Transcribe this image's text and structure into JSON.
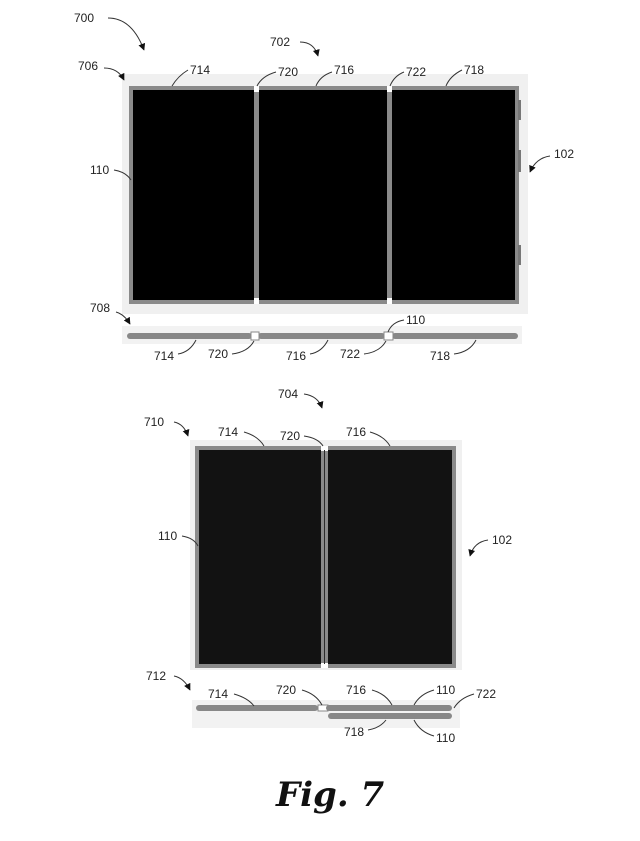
{
  "figure_caption": "Fig. 7",
  "refs": {
    "r700": "700",
    "r702": "702",
    "r704": "704",
    "r706": "706",
    "r708": "708",
    "r710": "710",
    "r712": "712",
    "r714": "714",
    "r716": "716",
    "r718": "718",
    "r720": "720",
    "r722": "722",
    "r110": "110",
    "r102": "102"
  }
}
